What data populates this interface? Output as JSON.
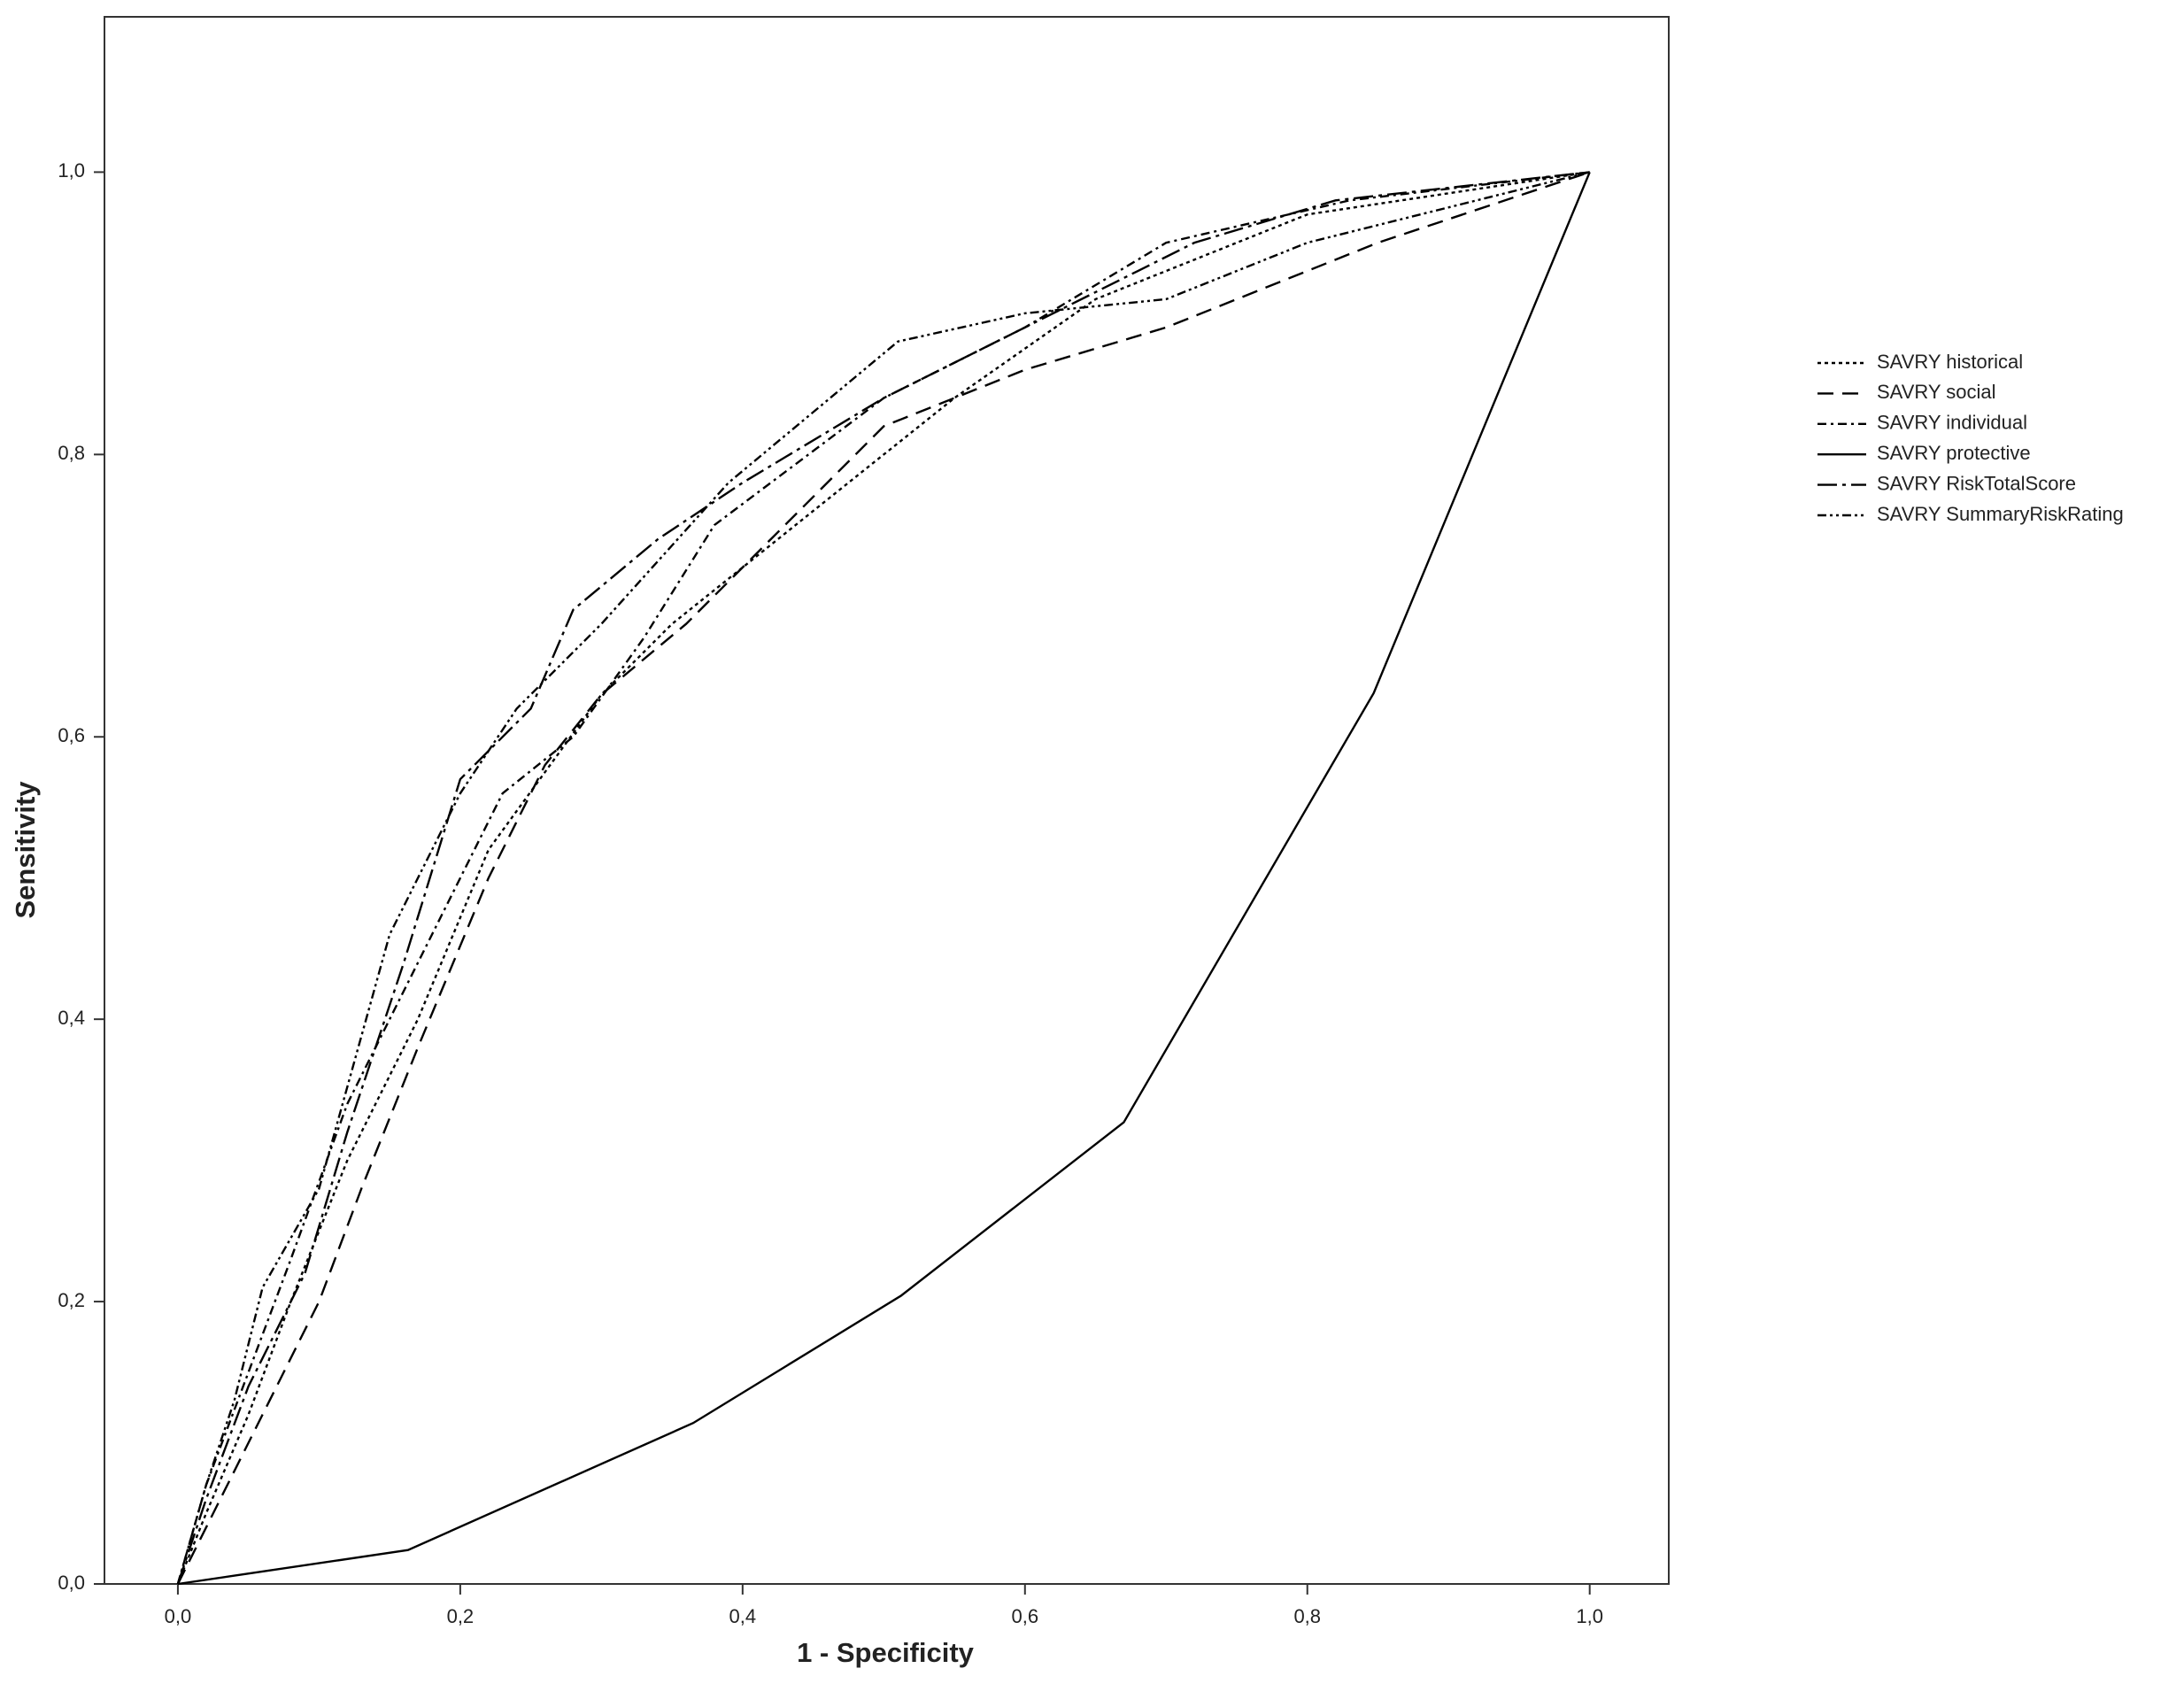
{
  "chart_data": {
    "type": "line",
    "xlabel": "1 - Specificity",
    "ylabel": "Sensitivity",
    "xlim": [
      -0.052,
      1.056
    ],
    "ylim": [
      0,
      1.11
    ],
    "xticks": [
      {
        "value": 0,
        "label": "0,0"
      },
      {
        "value": 0.2,
        "label": "0,2"
      },
      {
        "value": 0.4,
        "label": "0,4"
      },
      {
        "value": 0.6,
        "label": "0,6"
      },
      {
        "value": 0.8,
        "label": "0,8"
      },
      {
        "value": 1,
        "label": "1,0"
      }
    ],
    "yticks": [
      {
        "value": 0,
        "label": "0,0"
      },
      {
        "value": 0.2,
        "label": "0,2"
      },
      {
        "value": 0.4,
        "label": "0,4"
      },
      {
        "value": 0.6,
        "label": "0,6"
      },
      {
        "value": 0.8,
        "label": "0,8"
      },
      {
        "value": 1,
        "label": "1,0"
      }
    ],
    "legend": "right",
    "series": [
      {
        "name": "SAVRY historical",
        "color": "#000000",
        "dash": "4 4",
        "x": [
          0,
          0.02,
          0.05,
          0.08,
          0.12,
          0.17,
          0.22,
          0.3,
          0.35,
          0.45,
          0.55,
          0.65,
          0.8,
          1
        ],
        "values": [
          0,
          0.05,
          0.12,
          0.2,
          0.3,
          0.4,
          0.52,
          0.63,
          0.68,
          0.76,
          0.84,
          0.91,
          0.97,
          1
        ]
      },
      {
        "name": "SAVRY social",
        "color": "#000000",
        "dash": "18 10",
        "x": [
          0,
          0.03,
          0.06,
          0.1,
          0.13,
          0.17,
          0.22,
          0.26,
          0.3,
          0.36,
          0.42,
          0.5,
          0.6,
          0.7,
          0.85,
          1
        ],
        "values": [
          0,
          0.06,
          0.12,
          0.2,
          0.28,
          0.38,
          0.5,
          0.58,
          0.63,
          0.68,
          0.74,
          0.82,
          0.86,
          0.89,
          0.95,
          1
        ]
      },
      {
        "name": "SAVRY individual",
        "color": "#000000",
        "dash": "10 5 3 5",
        "x": [
          0,
          0.02,
          0.05,
          0.08,
          0.12,
          0.18,
          0.23,
          0.28,
          0.33,
          0.38,
          0.5,
          0.6,
          0.7,
          0.83,
          1
        ],
        "values": [
          0,
          0.07,
          0.15,
          0.23,
          0.34,
          0.46,
          0.56,
          0.6,
          0.67,
          0.75,
          0.84,
          0.89,
          0.95,
          0.98,
          1
        ]
      },
      {
        "name": "SAVRY protective",
        "color": "#000000",
        "dash": "none",
        "x": [
          0,
          0.163,
          0.365,
          0.512,
          0.67,
          0.847,
          1
        ],
        "values": [
          0,
          0.024,
          0.114,
          0.204,
          0.327,
          0.631,
          1
        ]
      },
      {
        "name": "SAVRY RiskTotalScore",
        "color": "#000000",
        "dash": "22 6 4 6",
        "x": [
          0,
          0.02,
          0.05,
          0.09,
          0.12,
          0.16,
          0.2,
          0.25,
          0.28,
          0.34,
          0.4,
          0.5,
          0.6,
          0.68,
          0.72,
          0.82,
          1
        ],
        "values": [
          0,
          0.06,
          0.14,
          0.22,
          0.32,
          0.44,
          0.57,
          0.62,
          0.69,
          0.74,
          0.78,
          0.84,
          0.89,
          0.93,
          0.95,
          0.98,
          1
        ]
      },
      {
        "name": "SAVRY SummaryRiskRating",
        "color": "#000000",
        "dash": "10 4 3 4 3 4",
        "x": [
          0,
          0.02,
          0.04,
          0.06,
          0.1,
          0.15,
          0.2,
          0.24,
          0.3,
          0.39,
          0.51,
          0.6,
          0.7,
          0.8,
          1
        ],
        "values": [
          0,
          0.07,
          0.13,
          0.21,
          0.28,
          0.46,
          0.56,
          0.62,
          0.68,
          0.78,
          0.88,
          0.9,
          0.91,
          0.95,
          1
        ]
      }
    ]
  }
}
